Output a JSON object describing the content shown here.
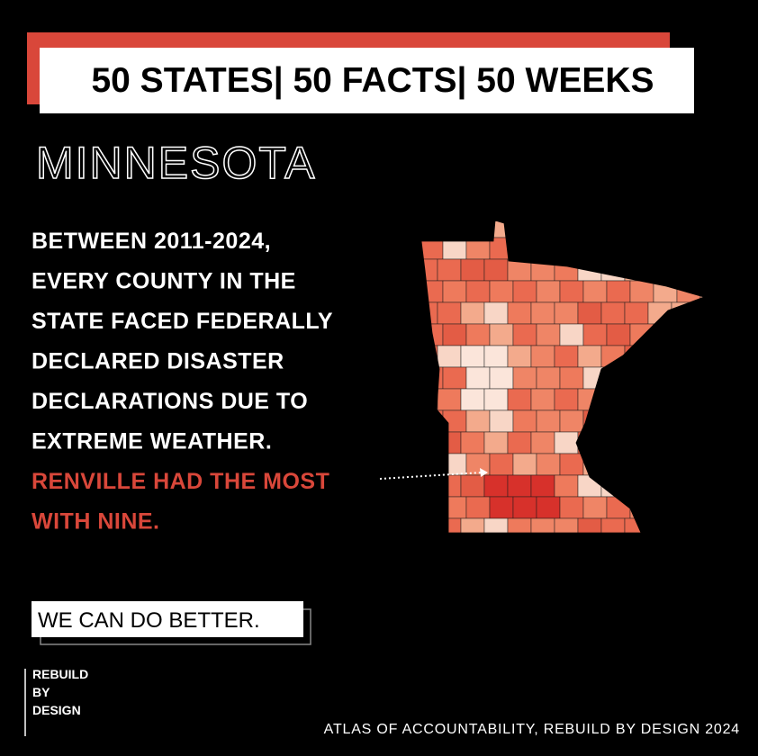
{
  "header": {
    "title": "50 STATES| 50 FACTS| 50 WEEKS"
  },
  "state": "MINNESOTA",
  "body": {
    "lines": [
      "BETWEEN 2011-2024,",
      "EVERY COUNTY IN THE",
      "STATE FACED FEDERALLY",
      "DECLARED DISASTER",
      "DECLARATIONS DUE TO",
      "EXTREME WEATHER."
    ],
    "highlight": [
      "RENVILLE HAD THE MOST",
      "WITH NINE."
    ]
  },
  "tagline": "WE CAN DO BETTER.",
  "logo": [
    "REBUILD",
    "BY",
    "DESIGN"
  ],
  "footer": "ATLAS OF ACCOUNTABILITY, REBUILD BY DESIGN 2024"
}
